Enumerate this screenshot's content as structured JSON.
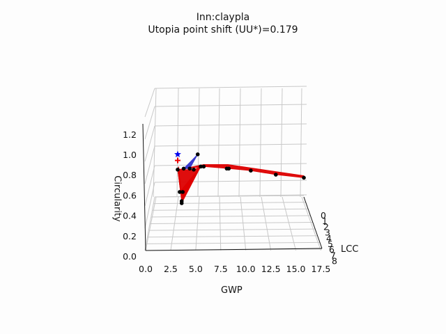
{
  "chart_data": {
    "type": "3d-surface-scatter",
    "title": "Inn:claypla",
    "subtitle": "Utopia point shift (UU*)=0.179",
    "xlabel": "GWP",
    "ylabel": "LCC",
    "zlabel": "Circularity",
    "x_ticks": [
      "0.0",
      "2.5",
      "5.0",
      "7.5",
      "10.0",
      "12.5",
      "15.0",
      "17.5"
    ],
    "y_ticks": [
      "0",
      "1",
      "2",
      "3",
      "4",
      "5",
      "6",
      "7",
      "8"
    ],
    "z_ticks": [
      "0.0",
      "0.2",
      "0.4",
      "0.6",
      "0.8",
      "1.0",
      "1.2"
    ],
    "xlim": [
      0,
      18
    ],
    "zlim": [
      0,
      1.3
    ],
    "points": [
      {
        "x": 3.2,
        "z": 0.85
      },
      {
        "x": 3.8,
        "z": 0.86
      },
      {
        "x": 4.4,
        "z": 0.86
      },
      {
        "x": 4.8,
        "z": 0.85
      },
      {
        "x": 5.2,
        "z": 1.0
      },
      {
        "x": 5.5,
        "z": 0.88
      },
      {
        "x": 5.8,
        "z": 0.88
      },
      {
        "x": 8.1,
        "z": 0.86
      },
      {
        "x": 8.3,
        "z": 0.86
      },
      {
        "x": 10.5,
        "z": 0.84
      },
      {
        "x": 13.0,
        "z": 0.8
      },
      {
        "x": 15.8,
        "z": 0.77
      },
      {
        "x": 3.4,
        "z": 0.63
      },
      {
        "x": 3.7,
        "z": 0.63
      },
      {
        "x": 3.6,
        "z": 0.54
      },
      {
        "x": 3.6,
        "z": 0.52
      }
    ],
    "utopia_point": {
      "marker": "star",
      "color": "#0000ee",
      "x": 3.2,
      "z": 1.0
    },
    "shifted_utopia_point": {
      "marker": "plus",
      "color": "#ee0000",
      "x": 3.2,
      "z": 0.94
    },
    "surface_colors": {
      "pareto_front": "#dd0000",
      "shift": "#3333cc"
    }
  }
}
